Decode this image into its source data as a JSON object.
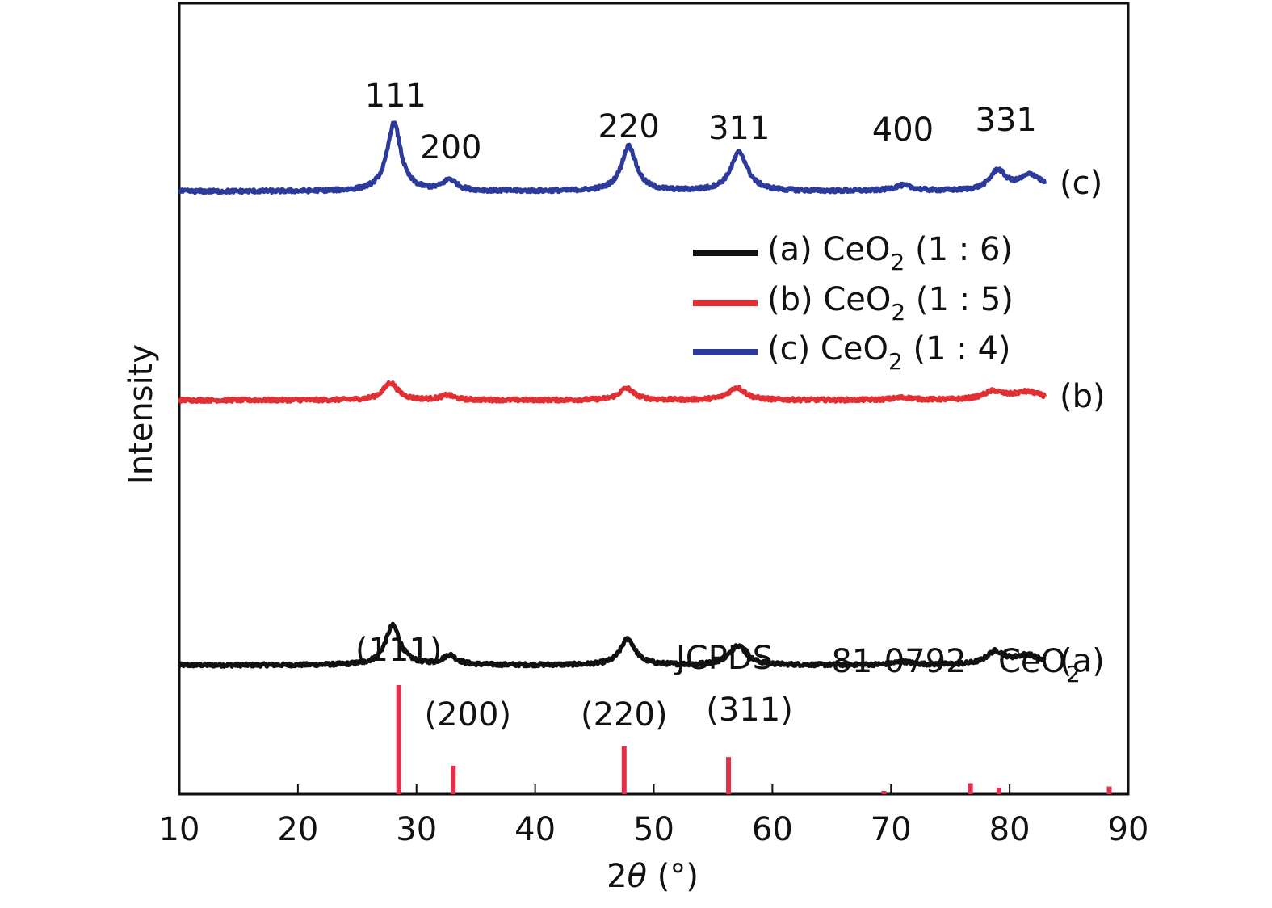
{
  "chart_data": {
    "type": "line",
    "title": "",
    "xlabel": "2θ (°)",
    "xlabel_parts": [
      "2",
      "θ",
      " (°)"
    ],
    "ylabel": "Intensity",
    "xlim": [
      10,
      90
    ],
    "ylim": [
      0,
      100
    ],
    "grid": false,
    "xticks": [
      10,
      20,
      30,
      40,
      50,
      60,
      70,
      80,
      90
    ],
    "xtick_labels": [
      "10",
      "20",
      "30",
      "40",
      "50",
      "60",
      "70",
      "80",
      "90"
    ],
    "x_range": [
      10,
      83
    ],
    "series": [
      {
        "id": "a",
        "name": "(a) CeO2 (1 : 6)",
        "tag": "(a)",
        "color": "#111111",
        "baseline": 16.3,
        "peaks": [
          {
            "x": 28.0,
            "h": 5.0,
            "w": 0.75
          },
          {
            "x": 32.8,
            "h": 1.2,
            "w": 0.7
          },
          {
            "x": 47.8,
            "h": 3.3,
            "w": 0.75
          },
          {
            "x": 57.1,
            "h": 2.5,
            "w": 0.85
          },
          {
            "x": 71.0,
            "h": 0.4,
            "w": 1.0
          },
          {
            "x": 78.8,
            "h": 1.6,
            "w": 0.9
          },
          {
            "x": 81.5,
            "h": 1.2,
            "w": 1.3
          }
        ]
      },
      {
        "id": "b",
        "name": "(b) CeO2 (1 : 5)",
        "tag": "(b)",
        "color": "#e03034",
        "baseline": 49.8,
        "peaks": [
          {
            "x": 27.8,
            "h": 2.2,
            "w": 0.75
          },
          {
            "x": 32.6,
            "h": 0.6,
            "w": 0.7
          },
          {
            "x": 47.7,
            "h": 1.5,
            "w": 0.75
          },
          {
            "x": 57.0,
            "h": 1.6,
            "w": 0.85
          },
          {
            "x": 71.0,
            "h": 0.3,
            "w": 1.0
          },
          {
            "x": 78.6,
            "h": 1.0,
            "w": 1.0
          },
          {
            "x": 81.5,
            "h": 1.0,
            "w": 1.5
          }
        ]
      },
      {
        "id": "c",
        "name": "(c) CeO2 (1 : 4)",
        "tag": "(c)",
        "color": "#2c3a9c",
        "baseline": 76.2,
        "peaks": [
          {
            "x": 28.1,
            "h": 8.6,
            "w": 0.7
          },
          {
            "x": 32.8,
            "h": 1.4,
            "w": 0.7
          },
          {
            "x": 47.9,
            "h": 5.7,
            "w": 0.75
          },
          {
            "x": 57.2,
            "h": 4.9,
            "w": 0.85
          },
          {
            "x": 71.0,
            "h": 0.7,
            "w": 1.0
          },
          {
            "x": 79.0,
            "h": 2.5,
            "w": 0.8
          },
          {
            "x": 81.8,
            "h": 2.0,
            "w": 1.2
          }
        ]
      }
    ],
    "legend": {
      "position": "center-right",
      "entries": [
        {
          "series": "a",
          "prefix": "(a) CeO",
          "sub": "2",
          "suffix": " (1 : 6)"
        },
        {
          "series": "b",
          "prefix": "(b) CeO",
          "sub": "2",
          "suffix": " (1 : 5)"
        },
        {
          "series": "c",
          "prefix": "(c) CeO",
          "sub": "2",
          "suffix": " (1 : 4)"
        }
      ]
    },
    "peak_labels_top": [
      {
        "label": "111",
        "x": 28.1
      },
      {
        "label": "200",
        "x": 32.9
      },
      {
        "label": "220",
        "x": 47.9
      },
      {
        "label": "311",
        "x": 57.2
      },
      {
        "label": "400",
        "x": 71.0
      },
      {
        "label": "331",
        "x": 79.7
      }
    ],
    "reference": {
      "name": "JCPDS 81-0792 CeO2",
      "text_parts": [
        "JCPDS",
        "81-0792",
        "CeO",
        "2"
      ],
      "color": "#e0304a",
      "lines": [
        {
          "x": 28.5,
          "intensity": 100
        },
        {
          "x": 33.1,
          "intensity": 26
        },
        {
          "x": 47.5,
          "intensity": 44
        },
        {
          "x": 56.3,
          "intensity": 34
        },
        {
          "x": 69.4,
          "intensity": 3
        },
        {
          "x": 76.7,
          "intensity": 10
        },
        {
          "x": 79.1,
          "intensity": 6
        },
        {
          "x": 88.4,
          "intensity": 7
        }
      ],
      "labels": [
        {
          "label": "(111)",
          "x": 28.5
        },
        {
          "label": "(200)",
          "x": 33.1
        },
        {
          "label": "(220)",
          "x": 47.5
        },
        {
          "label": "(311)",
          "x": 56.3
        }
      ]
    }
  }
}
